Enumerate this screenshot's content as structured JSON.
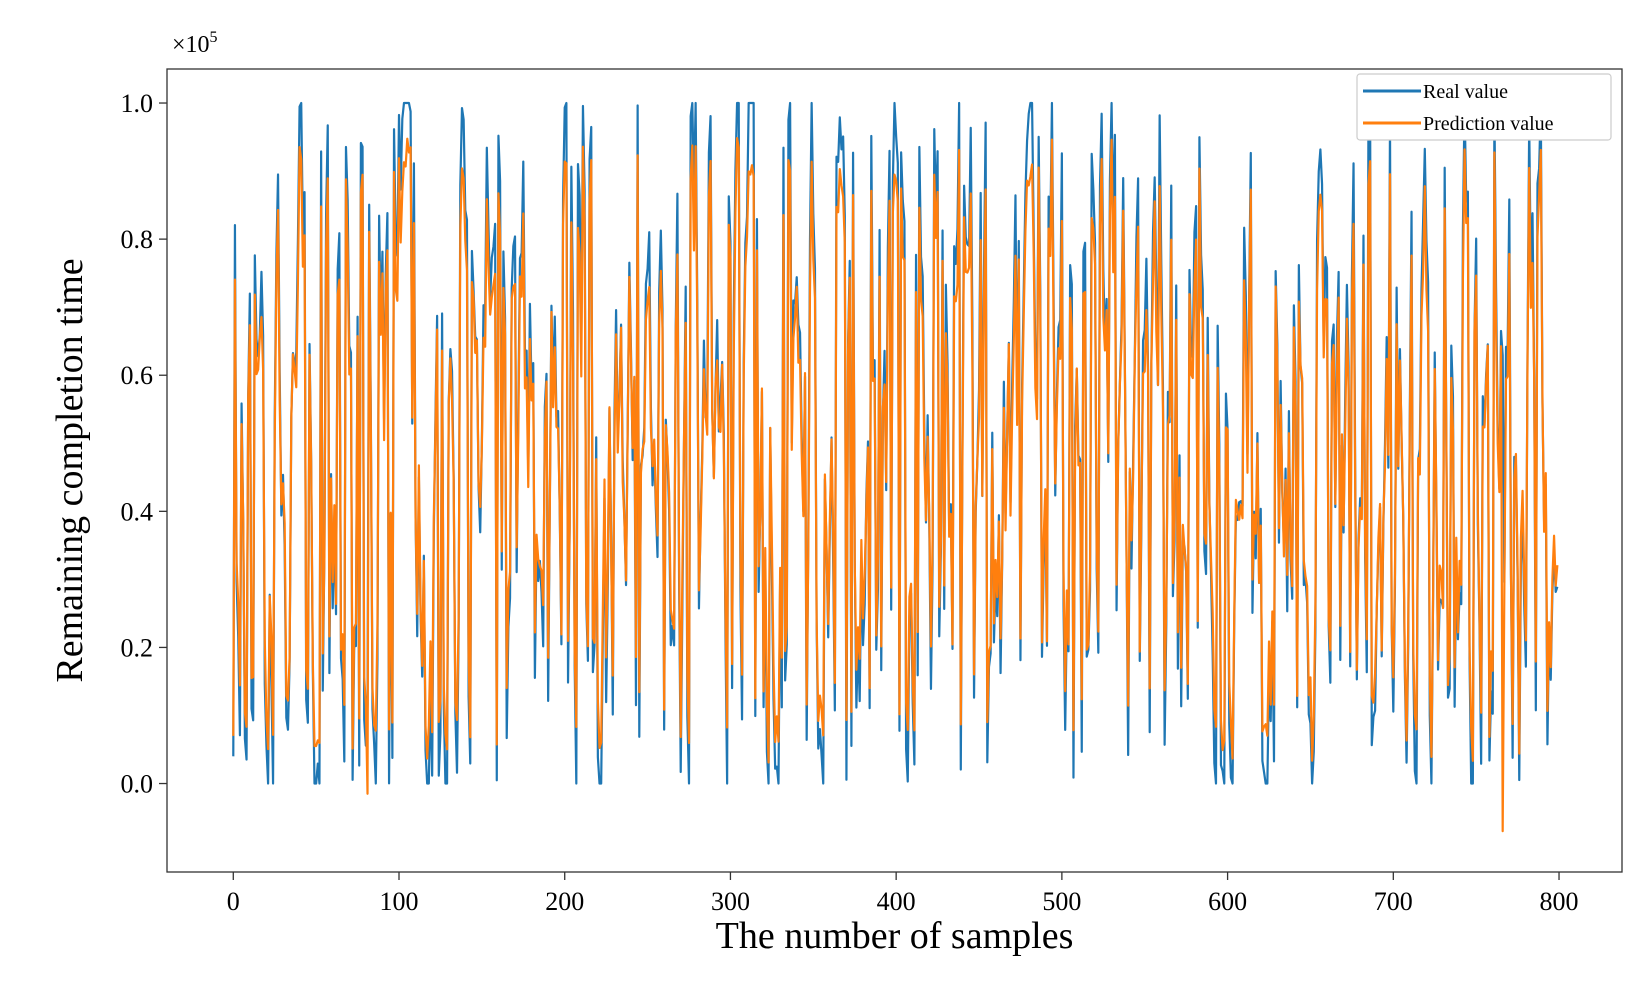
{
  "chart_data": {
    "type": "line",
    "title": "",
    "xlabel": "The number of samples",
    "ylabel": "Remaining completion time",
    "y_multiplier_label": "×10",
    "y_multiplier_exponent": "5",
    "xlim": [
      -40,
      838
    ],
    "ylim": [
      -0.13,
      1.05
    ],
    "x_ticks": [
      0,
      100,
      200,
      300,
      400,
      500,
      600,
      700,
      800
    ],
    "x_tick_labels": [
      "0",
      "100",
      "200",
      "300",
      "400",
      "500",
      "600",
      "700",
      "800"
    ],
    "y_ticks": [
      0.0,
      0.2,
      0.4,
      0.6,
      0.8,
      1.0
    ],
    "y_tick_labels": [
      "0.0",
      "0.2",
      "0.4",
      "0.6",
      "0.8",
      "1.0"
    ],
    "grid": false,
    "legend_position": "top-right",
    "series_generation": {
      "n_points": 800,
      "seed": 17,
      "min": 0.0,
      "max": 1.0
    },
    "series": [
      {
        "name": "Real value",
        "color": "#1f77b4"
      },
      {
        "name": "Prediction value",
        "color": "#ff7f0e"
      }
    ]
  }
}
